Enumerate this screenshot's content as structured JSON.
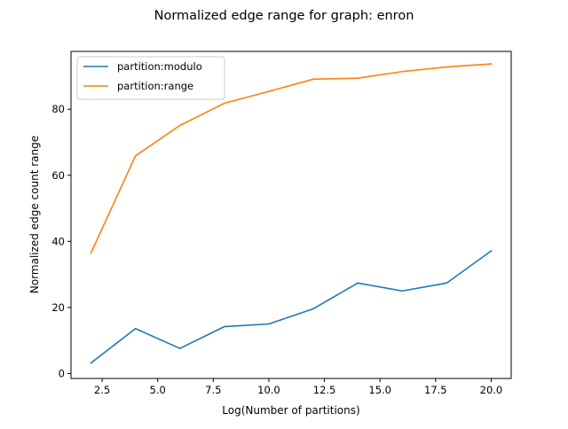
{
  "chart_data": {
    "type": "line",
    "title": "Normalized edge range for graph: enron",
    "xlabel": "Log(Number of partitions)",
    "ylabel": "Normalized edge count range",
    "xlim": [
      1.1,
      20.9
    ],
    "ylim": [
      -1.5,
      97.5
    ],
    "xticks": [
      2.5,
      5.0,
      7.5,
      10.0,
      12.5,
      15.0,
      17.5,
      20.0
    ],
    "xtick_labels": [
      "2.5",
      "5.0",
      "7.5",
      "10.0",
      "12.5",
      "15.0",
      "17.5",
      "20.0"
    ],
    "yticks": [
      0,
      20,
      40,
      60,
      80
    ],
    "ytick_labels": [
      "0",
      "20",
      "40",
      "60",
      "80"
    ],
    "grid": false,
    "legend_position": "top-left",
    "x": [
      2,
      4,
      6,
      8,
      10,
      12,
      14,
      16,
      18,
      20
    ],
    "series": [
      {
        "name": "partition:modulo",
        "color": "#1f77b4",
        "values": [
          3.2,
          13.6,
          7.6,
          14.2,
          15.0,
          19.6,
          27.4,
          25.0,
          27.4,
          37.1
        ]
      },
      {
        "name": "partition:range",
        "color": "#ff7f0e",
        "values": [
          36.5,
          65.9,
          75.1,
          81.8,
          85.4,
          89.1,
          89.4,
          91.4,
          92.8,
          93.7
        ]
      }
    ]
  }
}
